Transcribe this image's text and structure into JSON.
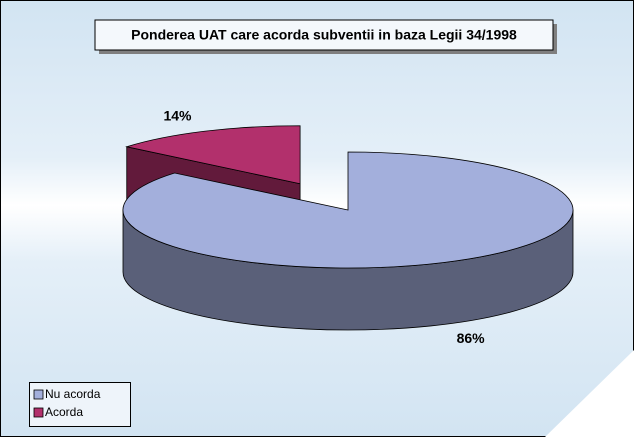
{
  "chart_data": {
    "type": "pie",
    "title": "Ponderea UAT care acorda subventii in baza Legii 34/1998",
    "categories": [
      "Nu acorda",
      "Acorda"
    ],
    "values": [
      86,
      14
    ],
    "value_labels": [
      "86%",
      "14%"
    ],
    "colors": [
      "#a3afdc",
      "#b2306c"
    ],
    "legend": "bottom-left"
  }
}
